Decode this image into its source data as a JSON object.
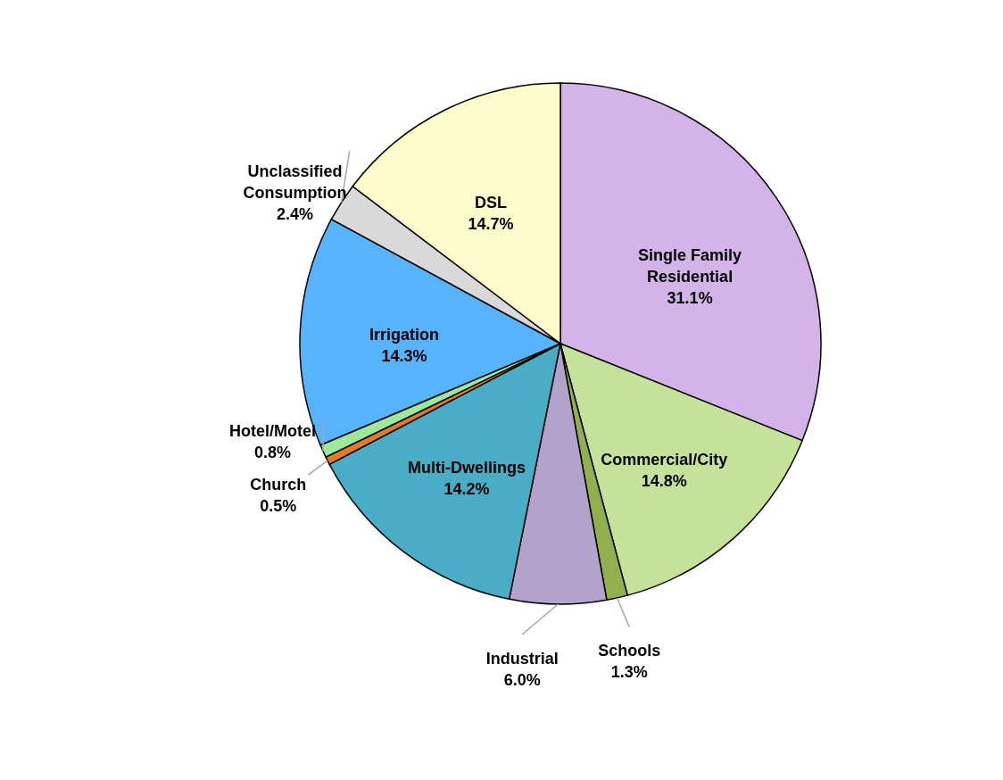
{
  "chart_data": {
    "type": "pie",
    "categories": [
      "Single Family Residential",
      "Commercial/City",
      "Schools",
      "Industrial",
      "Multi-Dwellings",
      "Church",
      "Hotel/Motel",
      "Irrigation",
      "Unclassified Consumption",
      "DSL"
    ],
    "values": [
      31.1,
      14.8,
      1.3,
      6.0,
      14.2,
      0.5,
      0.8,
      14.3,
      2.4,
      14.7
    ],
    "colors": [
      "#d4b3e8",
      "#c4e29a",
      "#8fb04d",
      "#b3a2c9",
      "#4bacc6",
      "#e2792c",
      "#9de89b",
      "#56b4fc",
      "#d9d9d9",
      "#fffccc"
    ],
    "value_labels": [
      "31.1%",
      "14.8%",
      "1.3%",
      "6.0%",
      "14.2%",
      "0.5%",
      "0.8%",
      "14.3%",
      "2.4%",
      "14.7%"
    ]
  }
}
